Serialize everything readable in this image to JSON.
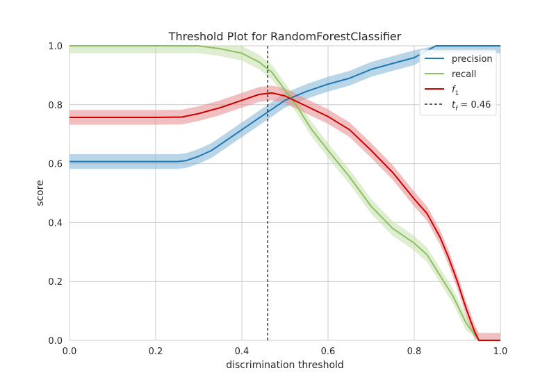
{
  "chart_data": {
    "type": "line",
    "title": "Threshold Plot for RandomForestClassifier",
    "xlabel": "discrimination threshold",
    "ylabel": "score",
    "xlim": [
      0.0,
      1.0
    ],
    "ylim": [
      0.0,
      1.0
    ],
    "xticks": [
      "0.0",
      "0.2",
      "0.4",
      "0.6",
      "0.8",
      "1.0"
    ],
    "yticks": [
      "0.0",
      "0.2",
      "0.4",
      "0.6",
      "0.8",
      "1.0"
    ],
    "grid": true,
    "legend_position": "top-right",
    "threshold_line": {
      "value": 0.46,
      "label_main": "t",
      "label_sub": "f",
      "label_rest": " = 0.46",
      "color": "#000000",
      "style": "dashed"
    },
    "series": [
      {
        "name": "precision",
        "color": "#1f77b4",
        "band_color": "#7fb3d5",
        "band_width": 0.025,
        "x": [
          0.0,
          0.05,
          0.1,
          0.15,
          0.2,
          0.25,
          0.27,
          0.3,
          0.33,
          0.36,
          0.4,
          0.43,
          0.46,
          0.5,
          0.55,
          0.6,
          0.65,
          0.7,
          0.75,
          0.8,
          0.85,
          0.9,
          0.95,
          1.0
        ],
        "values": [
          0.607,
          0.607,
          0.607,
          0.607,
          0.607,
          0.607,
          0.61,
          0.625,
          0.645,
          0.675,
          0.715,
          0.745,
          0.775,
          0.815,
          0.845,
          0.87,
          0.89,
          0.92,
          0.94,
          0.96,
          1.0,
          1.0,
          1.0,
          1.0
        ]
      },
      {
        "name": "recall",
        "color": "#8dc063",
        "band_color": "#c4dfa9",
        "band_width": 0.025,
        "x": [
          0.0,
          0.1,
          0.2,
          0.3,
          0.35,
          0.4,
          0.44,
          0.47,
          0.5,
          0.53,
          0.56,
          0.6,
          0.65,
          0.7,
          0.75,
          0.8,
          0.83,
          0.86,
          0.89,
          0.92,
          0.95
        ],
        "values": [
          1.0,
          1.0,
          1.0,
          1.0,
          0.99,
          0.975,
          0.945,
          0.91,
          0.85,
          0.79,
          0.72,
          0.645,
          0.555,
          0.455,
          0.38,
          0.33,
          0.29,
          0.22,
          0.15,
          0.06,
          0.0
        ]
      },
      {
        "name": "f1",
        "label_main": "f",
        "label_sub": "1",
        "color": "#cc0000",
        "band_color": "#e58a8a",
        "band_width": 0.025,
        "x": [
          0.0,
          0.1,
          0.2,
          0.26,
          0.3,
          0.35,
          0.4,
          0.44,
          0.47,
          0.5,
          0.55,
          0.6,
          0.65,
          0.7,
          0.75,
          0.8,
          0.83,
          0.86,
          0.88,
          0.9,
          0.92,
          0.94,
          0.95,
          1.0
        ],
        "values": [
          0.757,
          0.757,
          0.757,
          0.758,
          0.77,
          0.79,
          0.815,
          0.835,
          0.84,
          0.83,
          0.795,
          0.76,
          0.715,
          0.645,
          0.57,
          0.48,
          0.43,
          0.35,
          0.28,
          0.2,
          0.11,
          0.03,
          0.0,
          0.0
        ]
      }
    ]
  }
}
